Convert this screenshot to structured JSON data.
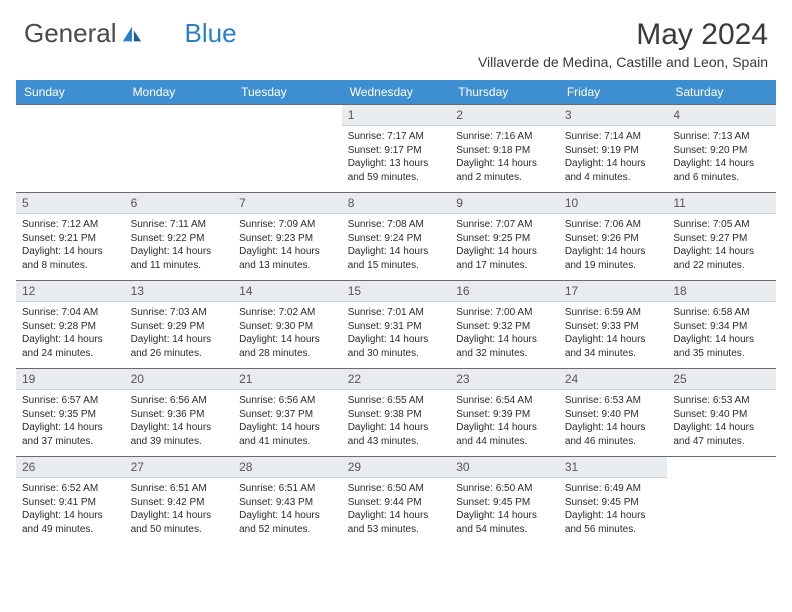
{
  "brand": {
    "part1": "General",
    "part2": "Blue"
  },
  "title": "May 2024",
  "location": "Villaverde de Medina, Castille and Leon, Spain",
  "colors": {
    "header_bg": "#3d8fd1",
    "header_text": "#ffffff",
    "daynum_bg": "#e8ecef",
    "text": "#2b2b2b",
    "logo_blue": "#2a7fc9"
  },
  "weekdays": [
    "Sunday",
    "Monday",
    "Tuesday",
    "Wednesday",
    "Thursday",
    "Friday",
    "Saturday"
  ],
  "weeks": [
    [
      null,
      null,
      null,
      {
        "n": "1",
        "sr": "7:17 AM",
        "ss": "9:17 PM",
        "dl": "13 hours and 59 minutes."
      },
      {
        "n": "2",
        "sr": "7:16 AM",
        "ss": "9:18 PM",
        "dl": "14 hours and 2 minutes."
      },
      {
        "n": "3",
        "sr": "7:14 AM",
        "ss": "9:19 PM",
        "dl": "14 hours and 4 minutes."
      },
      {
        "n": "4",
        "sr": "7:13 AM",
        "ss": "9:20 PM",
        "dl": "14 hours and 6 minutes."
      }
    ],
    [
      {
        "n": "5",
        "sr": "7:12 AM",
        "ss": "9:21 PM",
        "dl": "14 hours and 8 minutes."
      },
      {
        "n": "6",
        "sr": "7:11 AM",
        "ss": "9:22 PM",
        "dl": "14 hours and 11 minutes."
      },
      {
        "n": "7",
        "sr": "7:09 AM",
        "ss": "9:23 PM",
        "dl": "14 hours and 13 minutes."
      },
      {
        "n": "8",
        "sr": "7:08 AM",
        "ss": "9:24 PM",
        "dl": "14 hours and 15 minutes."
      },
      {
        "n": "9",
        "sr": "7:07 AM",
        "ss": "9:25 PM",
        "dl": "14 hours and 17 minutes."
      },
      {
        "n": "10",
        "sr": "7:06 AM",
        "ss": "9:26 PM",
        "dl": "14 hours and 19 minutes."
      },
      {
        "n": "11",
        "sr": "7:05 AM",
        "ss": "9:27 PM",
        "dl": "14 hours and 22 minutes."
      }
    ],
    [
      {
        "n": "12",
        "sr": "7:04 AM",
        "ss": "9:28 PM",
        "dl": "14 hours and 24 minutes."
      },
      {
        "n": "13",
        "sr": "7:03 AM",
        "ss": "9:29 PM",
        "dl": "14 hours and 26 minutes."
      },
      {
        "n": "14",
        "sr": "7:02 AM",
        "ss": "9:30 PM",
        "dl": "14 hours and 28 minutes."
      },
      {
        "n": "15",
        "sr": "7:01 AM",
        "ss": "9:31 PM",
        "dl": "14 hours and 30 minutes."
      },
      {
        "n": "16",
        "sr": "7:00 AM",
        "ss": "9:32 PM",
        "dl": "14 hours and 32 minutes."
      },
      {
        "n": "17",
        "sr": "6:59 AM",
        "ss": "9:33 PM",
        "dl": "14 hours and 34 minutes."
      },
      {
        "n": "18",
        "sr": "6:58 AM",
        "ss": "9:34 PM",
        "dl": "14 hours and 35 minutes."
      }
    ],
    [
      {
        "n": "19",
        "sr": "6:57 AM",
        "ss": "9:35 PM",
        "dl": "14 hours and 37 minutes."
      },
      {
        "n": "20",
        "sr": "6:56 AM",
        "ss": "9:36 PM",
        "dl": "14 hours and 39 minutes."
      },
      {
        "n": "21",
        "sr": "6:56 AM",
        "ss": "9:37 PM",
        "dl": "14 hours and 41 minutes."
      },
      {
        "n": "22",
        "sr": "6:55 AM",
        "ss": "9:38 PM",
        "dl": "14 hours and 43 minutes."
      },
      {
        "n": "23",
        "sr": "6:54 AM",
        "ss": "9:39 PM",
        "dl": "14 hours and 44 minutes."
      },
      {
        "n": "24",
        "sr": "6:53 AM",
        "ss": "9:40 PM",
        "dl": "14 hours and 46 minutes."
      },
      {
        "n": "25",
        "sr": "6:53 AM",
        "ss": "9:40 PM",
        "dl": "14 hours and 47 minutes."
      }
    ],
    [
      {
        "n": "26",
        "sr": "6:52 AM",
        "ss": "9:41 PM",
        "dl": "14 hours and 49 minutes."
      },
      {
        "n": "27",
        "sr": "6:51 AM",
        "ss": "9:42 PM",
        "dl": "14 hours and 50 minutes."
      },
      {
        "n": "28",
        "sr": "6:51 AM",
        "ss": "9:43 PM",
        "dl": "14 hours and 52 minutes."
      },
      {
        "n": "29",
        "sr": "6:50 AM",
        "ss": "9:44 PM",
        "dl": "14 hours and 53 minutes."
      },
      {
        "n": "30",
        "sr": "6:50 AM",
        "ss": "9:45 PM",
        "dl": "14 hours and 54 minutes."
      },
      {
        "n": "31",
        "sr": "6:49 AM",
        "ss": "9:45 PM",
        "dl": "14 hours and 56 minutes."
      },
      null
    ]
  ],
  "labels": {
    "sunrise": "Sunrise: ",
    "sunset": "Sunset: ",
    "daylight": "Daylight: "
  }
}
